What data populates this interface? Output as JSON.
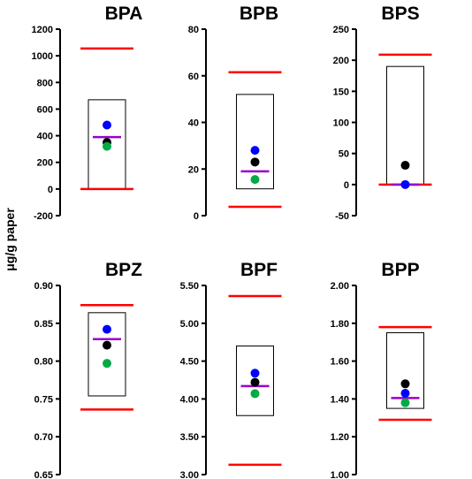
{
  "ylabel": "μg/g paper",
  "colors": {
    "limit_line": "#ff0000",
    "median_line": "#9900cc",
    "blue": "#0000ff",
    "black": "#000000",
    "green": "#00aa44"
  },
  "chart_data": [
    {
      "type": "scatter",
      "title": "BPA",
      "ylim": [
        -200,
        1200
      ],
      "yticks": [
        "-200",
        "0",
        "200",
        "400",
        "600",
        "800",
        "1000",
        "1200"
      ],
      "ytick_values": [
        -200,
        0,
        200,
        400,
        600,
        800,
        1000,
        1200
      ],
      "box": [
        0,
        670
      ],
      "upper_limit": 1055,
      "lower_limit": 0,
      "median": 390,
      "points": [
        {
          "color": "blue",
          "value": 480
        },
        {
          "color": "black",
          "value": 350
        },
        {
          "color": "green",
          "value": 320
        }
      ]
    },
    {
      "type": "scatter",
      "title": "BPB",
      "ylim": [
        0,
        80
      ],
      "yticks": [
        "0",
        "20",
        "40",
        "60",
        "80"
      ],
      "ytick_values": [
        0,
        20,
        40,
        60,
        80
      ],
      "box": [
        11.5,
        52
      ],
      "upper_limit": 61.5,
      "lower_limit": 3.8,
      "median": 19,
      "points": [
        {
          "color": "blue",
          "value": 28
        },
        {
          "color": "black",
          "value": 23
        },
        {
          "color": "green",
          "value": 15.5
        }
      ]
    },
    {
      "type": "scatter",
      "title": "BPS",
      "ylim": [
        -50,
        250
      ],
      "yticks": [
        "-50",
        "0",
        "50",
        "100",
        "150",
        "200",
        "250"
      ],
      "ytick_values": [
        -50,
        0,
        50,
        100,
        150,
        200,
        250
      ],
      "box": [
        0,
        190
      ],
      "upper_limit": 209,
      "lower_limit": 0,
      "median": 0,
      "points": [
        {
          "color": "black",
          "value": 31
        },
        {
          "color": "blue",
          "value": 0
        }
      ]
    },
    {
      "type": "scatter",
      "title": "BPZ",
      "ylim": [
        0.65,
        0.9
      ],
      "yticks": [
        "0.65",
        "0.70",
        "0.75",
        "0.80",
        "0.85",
        "0.90"
      ],
      "ytick_values": [
        0.65,
        0.7,
        0.75,
        0.8,
        0.85,
        0.9
      ],
      "box": [
        0.754,
        0.864
      ],
      "upper_limit": 0.874,
      "lower_limit": 0.736,
      "median": 0.829,
      "points": [
        {
          "color": "blue",
          "value": 0.842
        },
        {
          "color": "black",
          "value": 0.821
        },
        {
          "color": "green",
          "value": 0.797
        }
      ]
    },
    {
      "type": "scatter",
      "title": "BPF",
      "ylim": [
        3.0,
        5.5
      ],
      "yticks": [
        "3.00",
        "3.50",
        "4.00",
        "4.50",
        "5.00",
        "5.50"
      ],
      "ytick_values": [
        3.0,
        3.5,
        4.0,
        4.5,
        5.0,
        5.5
      ],
      "box": [
        3.78,
        4.7
      ],
      "upper_limit": 5.36,
      "lower_limit": 3.13,
      "median": 4.17,
      "points": [
        {
          "color": "blue",
          "value": 4.34
        },
        {
          "color": "black",
          "value": 4.22
        },
        {
          "color": "green",
          "value": 4.07
        }
      ]
    },
    {
      "type": "scatter",
      "title": "BPP",
      "ylim": [
        1.0,
        2.0
      ],
      "yticks": [
        "1.00",
        "1.20",
        "1.40",
        "1.60",
        "1.80",
        "2.00"
      ],
      "ytick_values": [
        1.0,
        1.2,
        1.4,
        1.6,
        1.8,
        2.0
      ],
      "box": [
        1.35,
        1.75
      ],
      "upper_limit": 1.78,
      "lower_limit": 1.29,
      "median": 1.405,
      "points": [
        {
          "color": "black",
          "value": 1.48
        },
        {
          "color": "blue",
          "value": 1.43
        },
        {
          "color": "green",
          "value": 1.38
        }
      ]
    }
  ]
}
